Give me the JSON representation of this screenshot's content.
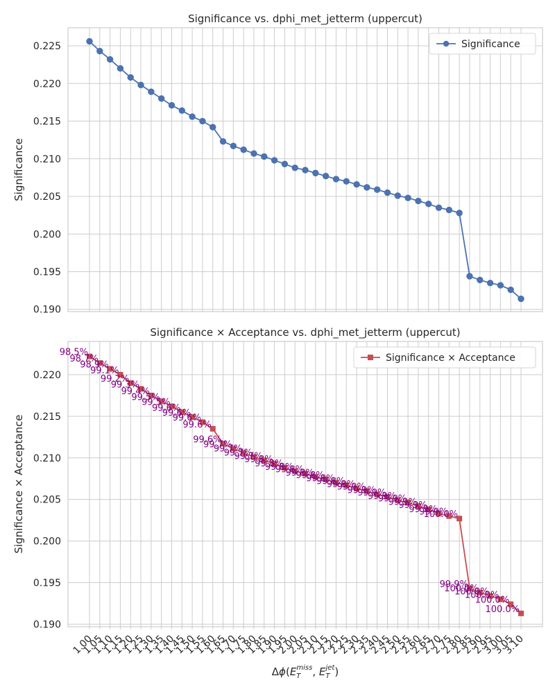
{
  "chart_data": [
    {
      "type": "line",
      "title": "Significance vs. dphi_met_jetterm (uppercut)",
      "xlabel": "",
      "ylabel": "Significance",
      "ylim": [
        0.1897,
        0.2274
      ],
      "yticks": [
        "0.190",
        "0.195",
        "0.200",
        "0.205",
        "0.210",
        "0.215",
        "0.220",
        "0.225"
      ],
      "grid": true,
      "legend": {
        "position": "top-right",
        "entries": [
          "Significance"
        ]
      },
      "color": "#4c72b0",
      "marker": "circle",
      "series": [
        {
          "name": "Significance",
          "x": [
            1.0,
            1.05,
            1.1,
            1.15,
            1.2,
            1.25,
            1.3,
            1.35,
            1.4,
            1.45,
            1.5,
            1.55,
            1.6,
            1.65,
            1.7,
            1.75,
            1.8,
            1.85,
            1.9,
            1.95,
            2.0,
            2.05,
            2.1,
            2.15,
            2.2,
            2.25,
            2.3,
            2.35,
            2.4,
            2.45,
            2.5,
            2.55,
            2.6,
            2.65,
            2.7,
            2.75,
            2.8,
            2.85,
            2.9,
            2.95,
            3.0,
            3.05,
            3.1
          ],
          "values": [
            0.2256,
            0.2243,
            0.2232,
            0.222,
            0.2208,
            0.2198,
            0.2189,
            0.218,
            0.2171,
            0.2164,
            0.2156,
            0.215,
            0.2142,
            0.2123,
            0.2117,
            0.2112,
            0.2107,
            0.2103,
            0.2098,
            0.2093,
            0.2088,
            0.2085,
            0.2081,
            0.2077,
            0.2073,
            0.207,
            0.2066,
            0.2062,
            0.2059,
            0.2055,
            0.2051,
            0.2048,
            0.2044,
            0.204,
            0.2035,
            0.2032,
            0.2028,
            0.1944,
            0.1939,
            0.1935,
            0.1932,
            0.1926,
            0.1914
          ]
        }
      ]
    },
    {
      "type": "line",
      "title": "Significance × Acceptance vs. dphi_met_jetterm (uppercut)",
      "xlabel": "Δϕ(E_T^miss, E_T^jet)",
      "ylabel": "Significance × Acceptance",
      "ylim": [
        0.1897,
        0.224
      ],
      "yticks": [
        "0.190",
        "0.195",
        "0.200",
        "0.205",
        "0.210",
        "0.215",
        "0.220"
      ],
      "xticks": [
        "1.00",
        "1.05",
        "1.10",
        "1.15",
        "1.20",
        "1.25",
        "1.30",
        "1.35",
        "1.40",
        "1.45",
        "1.50",
        "1.55",
        "1.60",
        "1.65",
        "1.70",
        "1.75",
        "1.80",
        "1.85",
        "1.90",
        "1.95",
        "2.00",
        "2.05",
        "2.10",
        "2.15",
        "2.20",
        "2.25",
        "2.30",
        "2.35",
        "2.40",
        "2.45",
        "2.50",
        "2.55",
        "2.60",
        "2.65",
        "2.70",
        "2.75",
        "2.80",
        "2.85",
        "2.90",
        "2.95",
        "3.00",
        "3.05",
        "3.10"
      ],
      "grid": true,
      "legend": {
        "position": "top-right",
        "entries": [
          "Significance × Acceptance"
        ]
      },
      "color": "#c44e52",
      "marker": "square",
      "label_color": "#800080",
      "series": [
        {
          "name": "Significance × Acceptance",
          "x": [
            1.0,
            1.05,
            1.1,
            1.15,
            1.2,
            1.25,
            1.3,
            1.35,
            1.4,
            1.45,
            1.5,
            1.55,
            1.6,
            1.65,
            1.7,
            1.75,
            1.8,
            1.85,
            1.9,
            1.95,
            2.0,
            2.05,
            2.1,
            2.15,
            2.2,
            2.25,
            2.3,
            2.35,
            2.4,
            2.45,
            2.5,
            2.55,
            2.6,
            2.65,
            2.7,
            2.75,
            2.8,
            2.85,
            2.9,
            2.95,
            3.0,
            3.05,
            3.1
          ],
          "values": [
            0.2222,
            0.2214,
            0.2207,
            0.22,
            0.219,
            0.2183,
            0.2175,
            0.2168,
            0.2162,
            0.2155,
            0.2149,
            0.2143,
            0.2135,
            0.2117,
            0.2111,
            0.2106,
            0.2101,
            0.2097,
            0.2093,
            0.2088,
            0.2084,
            0.2081,
            0.2077,
            0.2074,
            0.207,
            0.2067,
            0.2063,
            0.206,
            0.2056,
            0.2053,
            0.2049,
            0.2046,
            0.2042,
            0.2038,
            0.2033,
            0.203,
            0.2027,
            0.1943,
            0.1938,
            0.1934,
            0.193,
            0.1924,
            0.1913
          ],
          "labels": [
            "98.5%",
            "98.7%",
            "98.9%",
            "99.1%",
            "99.2%",
            "99.3%",
            "99.4%",
            "99.5%",
            "99.5%",
            "99.6%",
            "99.6%",
            "99.6%",
            "99.6%",
            "99.6%",
            "99.7%",
            "99.7%",
            "99.7%",
            "99.7%",
            "99.8%",
            "99.8%",
            "99.8%",
            "99.8%",
            "99.8%",
            "99.8%",
            "99.8%",
            "99.8%",
            "99.8%",
            "99.9%",
            "99.9%",
            "99.9%",
            "99.9%",
            "99.9%",
            "99.9%",
            "99.9%",
            "99.9%",
            "99.9%",
            "100.0%",
            "99.9%",
            "100.0%",
            "100.0%",
            "100.0%",
            "100.0%",
            "100.0%"
          ]
        }
      ]
    }
  ]
}
